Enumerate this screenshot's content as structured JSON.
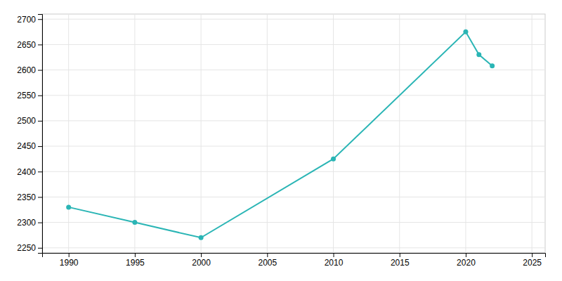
{
  "chart_data": {
    "type": "line",
    "x": [
      1990,
      1995,
      2000,
      2010,
      2020,
      2021,
      2022
    ],
    "values": [
      2330,
      2300,
      2270,
      2425,
      2675,
      2630,
      2608
    ],
    "color": "#2ab5b5",
    "marker": "circle",
    "xlim": [
      1988,
      2026
    ],
    "ylim": [
      2240,
      2710
    ],
    "xticks": [
      1990,
      1995,
      2000,
      2005,
      2010,
      2015,
      2020,
      2025
    ],
    "yticks": [
      2250,
      2300,
      2350,
      2400,
      2450,
      2500,
      2550,
      2600,
      2650,
      2700
    ],
    "grid": true
  }
}
